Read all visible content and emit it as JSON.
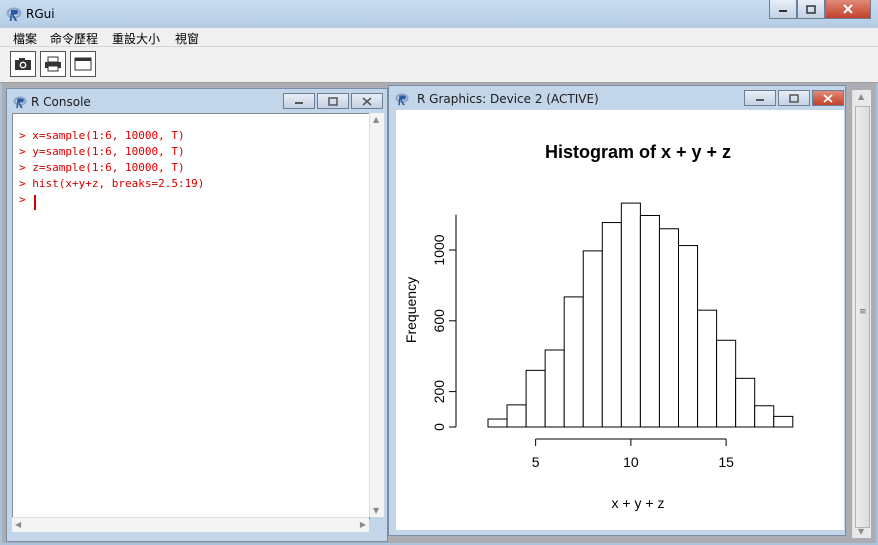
{
  "app": {
    "title": "RGui"
  },
  "menu": [
    "檔案",
    "命令歷程",
    "重設大小",
    "視窗"
  ],
  "toolbar": {
    "buttons": [
      "camera-icon",
      "print-icon",
      "window-icon"
    ]
  },
  "console": {
    "title": "R Console",
    "lines": [
      "> x=sample(1:6, 10000, T)",
      "> y=sample(1:6, 10000, T)",
      "> z=sample(1:6, 10000, T)",
      "> hist(x+y+z, breaks=2.5:19)",
      ">"
    ]
  },
  "graphics": {
    "title": "R Graphics: Device 2 (ACTIVE)"
  },
  "chart_data": {
    "type": "bar",
    "title": "Histogram of x + y + z",
    "xlabel": "x + y + z",
    "ylabel": "Frequency",
    "categories": [
      3,
      4,
      5,
      6,
      7,
      8,
      9,
      10,
      11,
      12,
      13,
      14,
      15,
      16,
      17,
      18
    ],
    "values": [
      45,
      125,
      320,
      435,
      735,
      995,
      1155,
      1265,
      1195,
      1120,
      1025,
      660,
      490,
      275,
      120,
      60
    ],
    "bin_edges": [
      2.5,
      19
    ],
    "xticks": [
      5,
      10,
      15
    ],
    "yticks": [
      0,
      200,
      600,
      1000
    ],
    "ylim": [
      0,
      1200
    ],
    "grid": false
  },
  "colors": {
    "console_text": "#d00000",
    "close_button": "#c2402a",
    "title_bar": "#b4cce4"
  }
}
